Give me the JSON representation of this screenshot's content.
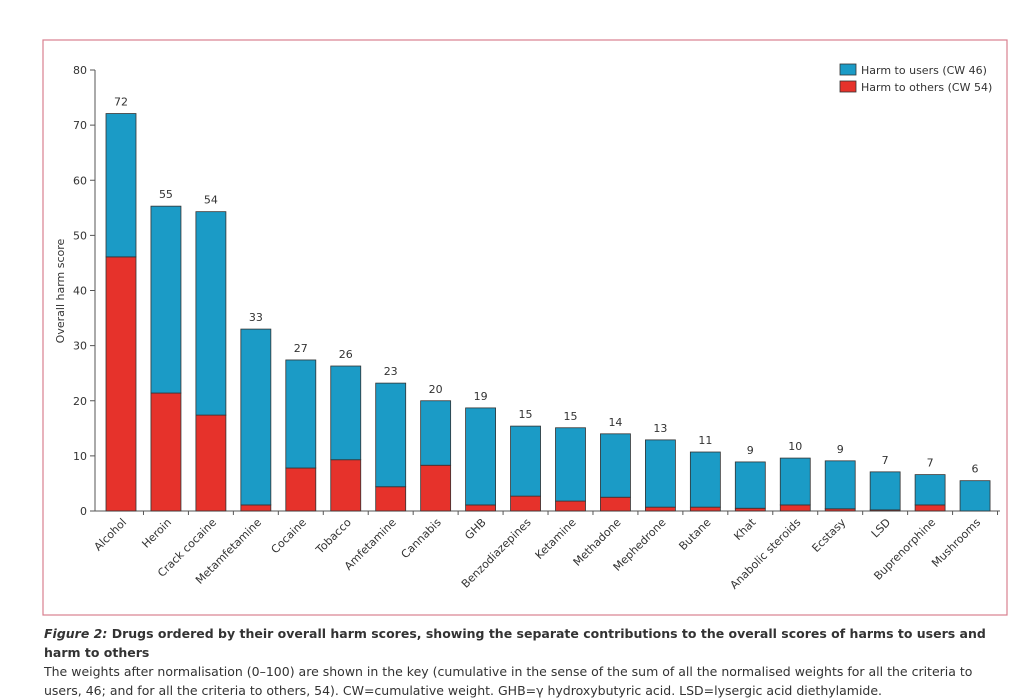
{
  "chart_data": {
    "type": "bar",
    "stacked": true,
    "y_label": "Overall harm score",
    "categories": [
      "Alcohol",
      "Heroin",
      "Crack cocaine",
      "Metamfetamine",
      "Cocaine",
      "Tobacco",
      "Amfetamine",
      "Cannabis",
      "GHB",
      "Benzodiazepines",
      "Ketamine",
      "Methadone",
      "Mephedrone",
      "Butane",
      "Khat",
      "Anabolic steroids",
      "Ecstasy",
      "LSD",
      "Buprenorphine",
      "Mushrooms"
    ],
    "series": [
      {
        "name": "Harm to users (CW 46)",
        "color": "#1b9bc6",
        "values": [
          26.0,
          33.9,
          36.9,
          31.9,
          19.6,
          17.0,
          18.8,
          11.7,
          17.6,
          12.7,
          13.3,
          11.5,
          12.2,
          10.0,
          8.4,
          8.5,
          8.7,
          6.9,
          5.5,
          5.5
        ]
      },
      {
        "name": "Harm to others (CW 54)",
        "color": "#e6322b",
        "values": [
          46.1,
          21.4,
          17.4,
          1.1,
          7.8,
          9.3,
          4.4,
          8.3,
          1.1,
          2.7,
          1.8,
          2.5,
          0.7,
          0.7,
          0.5,
          1.1,
          0.4,
          0.2,
          1.1,
          0.0
        ]
      }
    ],
    "total_labels": [
      "72",
      "55",
      "54",
      "33",
      "27",
      "26",
      "23",
      "20",
      "19",
      "15",
      "15",
      "14",
      "13",
      "11",
      "9",
      "10",
      "9",
      "7",
      "7",
      "6"
    ],
    "ylim": [
      0,
      80
    ],
    "yticks": [
      0,
      10,
      20,
      30,
      40,
      50,
      60,
      70,
      80
    ],
    "grid": false,
    "legend": "top-right"
  },
  "caption": {
    "figure_label": "Figure 2:",
    "title": "Drugs ordered by their overall harm scores, showing the separate contributions to the overall scores of harms to users and harm to others",
    "text": "The weights after normalisation (0–100) are shown in the key (cumulative in the sense of the sum of all the normalised weights for all the criteria to users, 46; and for all the criteria to others, 54). CW=cumulative weight. GHB=γ hydroxybutyric acid. LSD=lysergic acid diethylamide."
  }
}
